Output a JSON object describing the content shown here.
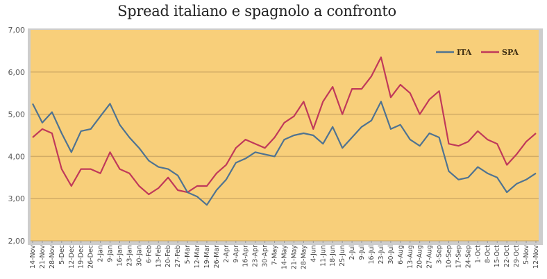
{
  "chart_data": {
    "type": "line",
    "title": "Spread italiano e spagnolo a confronto",
    "xlabel": "",
    "ylabel": "",
    "ylim": [
      2,
      7
    ],
    "yticks": [
      "2,00",
      "3,00",
      "4,00",
      "5,00",
      "6,00",
      "7,00"
    ],
    "grid": true,
    "legend_position": "top-right",
    "colors": {
      "background": "#F8CF7A",
      "grid": "#C9A460",
      "frame": "#A9A9A9",
      "ITA": "#4F7391",
      "SPA": "#C0395A"
    },
    "categories": [
      "14-Nov",
      "21-Nov",
      "28-Nov",
      "5-Dec",
      "12-Dec",
      "19-Dec",
      "26-Dec",
      "2-Jan",
      "9-Jan",
      "16-Jan",
      "23-Jan",
      "30-Jan",
      "6-Feb",
      "13-Feb",
      "20-Feb",
      "27-Feb",
      "5-Mar",
      "12-Mar",
      "19-Mar",
      "26-Mar",
      "2-Apr",
      "9-Apr",
      "16-Apr",
      "23-Apr",
      "30-Apr",
      "7-May",
      "14-May",
      "21-May",
      "28-May",
      "4-Jun",
      "11-Jun",
      "18-Jun",
      "25-Jun",
      "2-Jul",
      "9-Jul",
      "16-Jul",
      "23-Jul",
      "30-Jul",
      "6-Aug",
      "13-Aug",
      "20-Aug",
      "27-Aug",
      "3-Sep",
      "10-Sep",
      "17-Sep",
      "24-Sep",
      "1-Oct",
      "8-Oct",
      "15-Oct",
      "22-Oct",
      "29-Oct",
      "5-Nov",
      "12-Nov"
    ],
    "series": [
      {
        "name": "ITA",
        "values": [
          5.25,
          4.8,
          5.05,
          4.55,
          4.1,
          4.6,
          4.65,
          4.95,
          5.25,
          4.75,
          4.45,
          4.2,
          3.9,
          3.75,
          3.7,
          3.55,
          3.15,
          3.05,
          2.85,
          3.2,
          3.45,
          3.85,
          3.95,
          4.1,
          4.05,
          4.0,
          4.4,
          4.5,
          4.55,
          4.5,
          4.3,
          4.7,
          4.2,
          4.45,
          4.7,
          4.85,
          5.3,
          4.65,
          4.75,
          4.4,
          4.25,
          4.55,
          4.45,
          3.65,
          3.45,
          3.5,
          3.75,
          3.6,
          3.5,
          3.15,
          3.35,
          3.45,
          3.6
        ]
      },
      {
        "name": "SPA",
        "values": [
          4.45,
          4.65,
          4.55,
          3.7,
          3.3,
          3.7,
          3.7,
          3.6,
          4.1,
          3.7,
          3.6,
          3.3,
          3.1,
          3.25,
          3.5,
          3.2,
          3.15,
          3.3,
          3.3,
          3.6,
          3.8,
          4.2,
          4.4,
          4.3,
          4.2,
          4.45,
          4.8,
          4.95,
          5.3,
          4.65,
          5.3,
          5.65,
          5.0,
          5.6,
          5.6,
          5.9,
          6.35,
          5.4,
          5.7,
          5.5,
          5.0,
          5.35,
          5.55,
          4.3,
          4.25,
          4.35,
          4.6,
          4.4,
          4.3,
          3.8,
          4.05,
          4.35,
          4.55
        ]
      }
    ]
  }
}
